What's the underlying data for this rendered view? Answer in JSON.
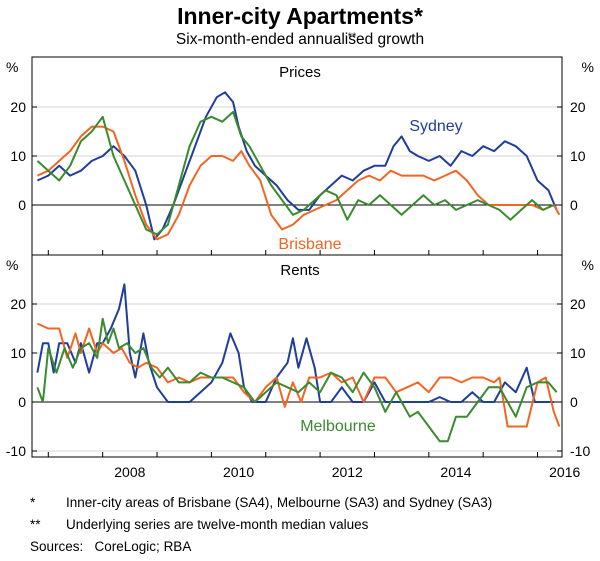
{
  "title": "Inner-city Apartments*",
  "subtitle": "Six-month-ended annualised growth",
  "subtitle_mark": "**",
  "colors": {
    "sydney": "#1f3d9c",
    "brisbane": "#f26522",
    "melbourne": "#3a8a2e",
    "axis": "#000000",
    "grid": "#bdbdbd"
  },
  "footnotes": [
    {
      "mark": "*",
      "text": "Inner-city areas of Brisbane (SA4), Melbourne (SA3) and Sydney (SA3)"
    },
    {
      "mark": "**",
      "text": "Underlying series are twelve-month median values"
    }
  ],
  "sources": "Sources:   CoreLogic; RBA",
  "chart_data": [
    {
      "type": "line",
      "title": "Prices",
      "ylabel": "%",
      "ylim": [
        -10,
        30
      ],
      "yticks": [
        0,
        10,
        20
      ],
      "xlim": [
        2006.7,
        2016.45
      ],
      "xticks": [
        2008,
        2010,
        2012,
        2014,
        2016
      ],
      "series": [
        {
          "name": "Sydney",
          "key": "sydney",
          "labeled": true,
          "x": [
            2006.8,
            2007.0,
            2007.2,
            2007.4,
            2007.6,
            2007.8,
            2008.0,
            2008.2,
            2008.4,
            2008.6,
            2008.8,
            2008.95,
            2009.1,
            2009.3,
            2009.5,
            2009.7,
            2009.9,
            2010.1,
            2010.25,
            2010.4,
            2010.5,
            2010.65,
            2010.8,
            2011.0,
            2011.2,
            2011.4,
            2011.6,
            2011.8,
            2012.0,
            2012.2,
            2012.4,
            2012.6,
            2012.8,
            2013.0,
            2013.2,
            2013.35,
            2013.5,
            2013.65,
            2013.8,
            2014.0,
            2014.2,
            2014.4,
            2014.6,
            2014.8,
            2015.0,
            2015.2,
            2015.4,
            2015.6,
            2015.8,
            2016.0,
            2016.2,
            2016.35
          ],
          "values": [
            5,
            6,
            8,
            6,
            7,
            9,
            10,
            12,
            10,
            7,
            0,
            -7,
            -5,
            0,
            6,
            12,
            18,
            22,
            23,
            21,
            16,
            11,
            8,
            6,
            4,
            1,
            -1,
            -1,
            2,
            4,
            6,
            5,
            7,
            8,
            8,
            12,
            14,
            11,
            10,
            9,
            10,
            8,
            11,
            10,
            12,
            11,
            13,
            12,
            10,
            5,
            3,
            -1
          ]
        },
        {
          "name": "Brisbane",
          "key": "brisbane",
          "labeled": true,
          "x": [
            2006.8,
            2007.0,
            2007.2,
            2007.4,
            2007.6,
            2007.8,
            2008.0,
            2008.2,
            2008.4,
            2008.6,
            2008.8,
            2009.0,
            2009.2,
            2009.4,
            2009.6,
            2009.8,
            2010.0,
            2010.2,
            2010.4,
            2010.55,
            2010.7,
            2010.9,
            2011.1,
            2011.3,
            2011.5,
            2011.7,
            2011.9,
            2012.1,
            2012.3,
            2012.5,
            2012.7,
            2012.9,
            2013.1,
            2013.3,
            2013.5,
            2013.7,
            2013.9,
            2014.1,
            2014.3,
            2014.5,
            2014.7,
            2014.9,
            2015.1,
            2015.3,
            2015.5,
            2015.7,
            2015.9,
            2016.1,
            2016.3,
            2016.4
          ],
          "values": [
            6,
            7,
            9,
            11,
            14,
            16,
            16,
            15,
            9,
            2,
            -4,
            -7,
            -6,
            -2,
            4,
            8,
            10,
            10,
            9,
            11,
            8,
            5,
            -2,
            -5,
            -4,
            -2,
            -1,
            0,
            1,
            3,
            5,
            6,
            5,
            7,
            6,
            6,
            6,
            5,
            6,
            7,
            5,
            2,
            0,
            0,
            0,
            0,
            0,
            -1,
            0,
            -2
          ]
        },
        {
          "name": "Melbourne",
          "key": "melbourne",
          "labeled": false,
          "x": [
            2006.8,
            2007.0,
            2007.2,
            2007.4,
            2007.6,
            2007.8,
            2008.0,
            2008.2,
            2008.4,
            2008.6,
            2008.8,
            2009.0,
            2009.2,
            2009.4,
            2009.6,
            2009.8,
            2010.0,
            2010.2,
            2010.4,
            2010.55,
            2010.7,
            2010.9,
            2011.1,
            2011.3,
            2011.5,
            2011.7,
            2011.9,
            2012.1,
            2012.3,
            2012.5,
            2012.7,
            2012.9,
            2013.1,
            2013.3,
            2013.5,
            2013.7,
            2013.9,
            2014.1,
            2014.3,
            2014.5,
            2014.7,
            2014.9,
            2015.1,
            2015.3,
            2015.5,
            2015.7,
            2015.9,
            2016.1,
            2016.3
          ],
          "values": [
            9,
            7,
            5,
            8,
            13,
            15,
            18,
            10,
            5,
            0,
            -5,
            -6,
            -4,
            4,
            12,
            17,
            18,
            17,
            19,
            14,
            12,
            8,
            4,
            1,
            -2,
            -1,
            1,
            3,
            2,
            -3,
            1,
            0,
            2,
            0,
            -2,
            0,
            2,
            0,
            1,
            -1,
            0,
            1,
            0,
            -1,
            -3,
            -1,
            1,
            -1,
            0
          ]
        }
      ]
    },
    {
      "type": "line",
      "title": "Rents",
      "ylabel": "%",
      "ylim": [
        -10,
        30
      ],
      "yticks": [
        -10,
        0,
        10,
        20
      ],
      "xlim": [
        2006.7,
        2016.45
      ],
      "xticks": [
        2008,
        2010,
        2012,
        2014,
        2016
      ],
      "series": [
        {
          "name": "Sydney",
          "key": "sydney",
          "labeled": false,
          "x": [
            2006.8,
            2006.9,
            2007.0,
            2007.1,
            2007.2,
            2007.35,
            2007.5,
            2007.6,
            2007.75,
            2007.9,
            2008.0,
            2008.15,
            2008.3,
            2008.4,
            2008.5,
            2008.6,
            2008.75,
            2008.85,
            2009.0,
            2009.2,
            2009.4,
            2009.6,
            2009.8,
            2010.0,
            2010.2,
            2010.35,
            2010.5,
            2010.6,
            2010.75,
            2010.9,
            2011.0,
            2011.2,
            2011.4,
            2011.5,
            2011.6,
            2011.75,
            2011.9,
            2012.0,
            2012.2,
            2012.4,
            2012.6,
            2012.8,
            2013.0,
            2013.2,
            2013.4,
            2013.6,
            2013.8,
            2014.0,
            2014.2,
            2014.4,
            2014.6,
            2014.8,
            2015.0,
            2015.2,
            2015.4,
            2015.6,
            2015.8,
            2015.95,
            2016.1,
            2016.3
          ],
          "values": [
            6,
            12,
            12,
            6,
            12,
            12,
            8,
            12,
            6,
            12,
            12,
            15,
            19,
            24,
            10,
            5,
            14,
            8,
            3,
            0,
            0,
            0,
            2,
            4,
            8,
            14,
            10,
            3,
            0,
            0,
            0,
            5,
            8,
            13,
            7,
            13,
            7,
            0,
            0,
            3,
            0,
            0,
            4,
            0,
            0,
            0,
            0,
            0,
            1,
            0,
            0,
            2,
            0,
            0,
            4,
            2,
            7,
            0,
            0,
            0
          ]
        },
        {
          "name": "Brisbane",
          "key": "brisbane",
          "labeled": false,
          "x": [
            2006.8,
            2007.0,
            2007.2,
            2007.35,
            2007.5,
            2007.6,
            2007.75,
            2007.9,
            2008.0,
            2008.2,
            2008.35,
            2008.5,
            2008.65,
            2008.8,
            2009.0,
            2009.2,
            2009.4,
            2009.6,
            2009.8,
            2010.0,
            2010.2,
            2010.4,
            2010.6,
            2010.8,
            2011.0,
            2011.2,
            2011.35,
            2011.5,
            2011.65,
            2011.8,
            2012.0,
            2012.2,
            2012.4,
            2012.6,
            2012.8,
            2013.0,
            2013.2,
            2013.4,
            2013.6,
            2013.8,
            2014.0,
            2014.2,
            2014.4,
            2014.6,
            2014.8,
            2015.0,
            2015.2,
            2015.3,
            2015.45,
            2015.6,
            2015.8,
            2016.0,
            2016.15,
            2016.3,
            2016.4
          ],
          "values": [
            16,
            15,
            15,
            9,
            14,
            10,
            15,
            10,
            12,
            10,
            11,
            8,
            7,
            8,
            7,
            4,
            5,
            4,
            5,
            5,
            5,
            5,
            2,
            0,
            3,
            5,
            -1,
            4,
            0,
            5,
            5,
            6,
            4,
            5,
            0,
            5,
            5,
            2,
            3,
            4,
            2,
            5,
            5,
            4,
            5,
            5,
            4,
            5,
            -5,
            -5,
            -5,
            4,
            5,
            -2,
            -5
          ]
        },
        {
          "name": "Melbourne",
          "key": "melbourne",
          "labeled": true,
          "x": [
            2006.8,
            2006.9,
            2007.0,
            2007.15,
            2007.3,
            2007.45,
            2007.6,
            2007.75,
            2007.9,
            2008.0,
            2008.1,
            2008.2,
            2008.3,
            2008.45,
            2008.6,
            2008.75,
            2008.9,
            2009.05,
            2009.2,
            2009.4,
            2009.6,
            2009.8,
            2010.0,
            2010.2,
            2010.4,
            2010.6,
            2010.8,
            2011.0,
            2011.2,
            2011.4,
            2011.6,
            2011.8,
            2012.0,
            2012.2,
            2012.4,
            2012.6,
            2012.8,
            2013.0,
            2013.2,
            2013.4,
            2013.5,
            2013.65,
            2013.8,
            2014.0,
            2014.2,
            2014.35,
            2014.5,
            2014.7,
            2014.9,
            2015.1,
            2015.3,
            2015.45,
            2015.6,
            2015.8,
            2016.0,
            2016.2,
            2016.35
          ],
          "values": [
            3,
            0,
            11,
            6,
            11,
            7,
            11,
            12,
            9,
            17,
            12,
            15,
            11,
            12,
            10,
            11,
            7,
            5,
            7,
            4,
            4,
            6,
            5,
            5,
            4,
            3,
            0,
            2,
            4,
            3,
            2,
            4,
            2,
            6,
            5,
            2,
            6,
            3,
            -2,
            2,
            0,
            -3,
            -2,
            -5,
            -8,
            -8,
            -3,
            -3,
            0,
            3,
            3,
            0,
            -3,
            3,
            4,
            4,
            2
          ]
        }
      ]
    }
  ],
  "panel_labels": [
    {
      "series": "Sydney",
      "panel": 0
    },
    {
      "series": "Brisbane",
      "panel": 0
    },
    {
      "series": "Melbourne",
      "panel": 1
    }
  ]
}
